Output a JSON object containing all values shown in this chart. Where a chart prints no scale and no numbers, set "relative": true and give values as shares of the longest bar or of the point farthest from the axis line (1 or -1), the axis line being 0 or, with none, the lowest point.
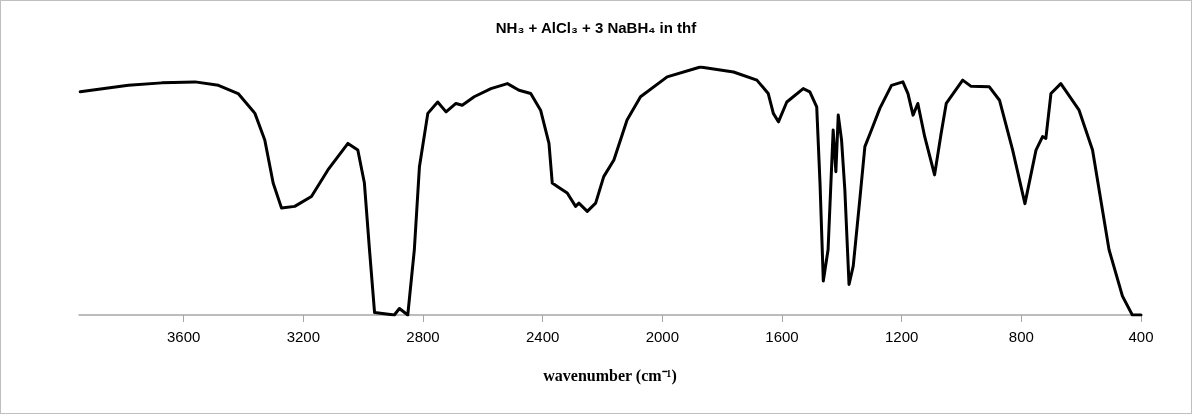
{
  "chart_data": {
    "type": "line",
    "title": "NH₃ + AlCl₃ + 3 NaBH₄ in thf",
    "xlabel": "wavenumber (cm⁻¹)",
    "relative": true,
    "xlim": [
      3950,
      400
    ],
    "xticks": [
      3600,
      3200,
      2800,
      2400,
      2000,
      1600,
      1200,
      800,
      400
    ],
    "grid": false,
    "marker": "none",
    "line_style": "solid",
    "series": [
      {
        "color": "#000000",
        "x": [
          3946,
          3785,
          3673,
          3562,
          3484,
          3418,
          3362,
          3329,
          3301,
          3273,
          3229,
          3173,
          3118,
          3051,
          3018,
          2996,
          2979,
          2962,
          2896,
          2879,
          2851,
          2829,
          2812,
          2784,
          2751,
          2723,
          2690,
          2669,
          2629,
          2573,
          2518,
          2479,
          2440,
          2407,
          2379,
          2368,
          2351,
          2318,
          2290,
          2279,
          2251,
          2223,
          2196,
          2162,
          2118,
          2073,
          1984,
          1873,
          1762,
          1684,
          1646,
          1629,
          1612,
          1584,
          1529,
          1507,
          1484,
          1473,
          1462,
          1446,
          1429,
          1420,
          1412,
          1401,
          1390,
          1376,
          1362,
          1340,
          1323,
          1301,
          1273,
          1234,
          1196,
          1179,
          1162,
          1146,
          1123,
          1090,
          1068,
          1051,
          996,
          968,
          907,
          873,
          829,
          788,
          751,
          729,
          718,
          701,
          668,
          607,
          562,
          507,
          462,
          429,
          400
        ],
        "values": [
          0.9,
          0.926,
          0.936,
          0.94,
          0.926,
          0.893,
          0.813,
          0.706,
          0.532,
          0.431,
          0.438,
          0.478,
          0.585,
          0.692,
          0.665,
          0.532,
          0.264,
          0.01,
          0,
          0.026,
          0,
          0.264,
          0.598,
          0.813,
          0.859,
          0.819,
          0.853,
          0.846,
          0.88,
          0.913,
          0.933,
          0.906,
          0.893,
          0.826,
          0.692,
          0.532,
          0.518,
          0.492,
          0.438,
          0.451,
          0.418,
          0.451,
          0.558,
          0.625,
          0.786,
          0.88,
          0.96,
          1,
          0.98,
          0.947,
          0.893,
          0.813,
          0.779,
          0.859,
          0.913,
          0.9,
          0.839,
          0.532,
          0.137,
          0.264,
          0.746,
          0.578,
          0.806,
          0.706,
          0.505,
          0.123,
          0.197,
          0.465,
          0.679,
          0.746,
          0.833,
          0.926,
          0.94,
          0.893,
          0.806,
          0.853,
          0.719,
          0.565,
          0.733,
          0.853,
          0.947,
          0.922,
          0.92,
          0.866,
          0.665,
          0.449,
          0.665,
          0.719,
          0.712,
          0.893,
          0.933,
          0.826,
          0.665,
          0.264,
          0.076,
          0,
          0
        ]
      }
    ]
  }
}
